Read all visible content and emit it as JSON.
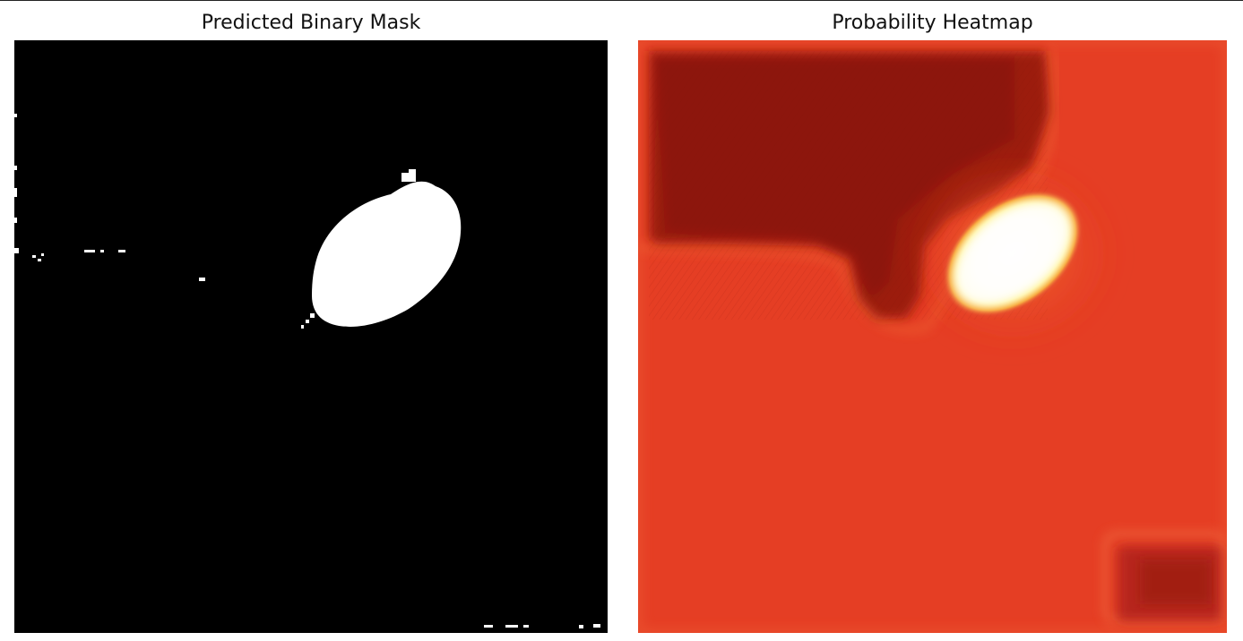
{
  "panels": [
    {
      "title": "Predicted Binary Mask"
    },
    {
      "title": "Probability Heatmap"
    }
  ],
  "colors": {
    "mask_background": "#000000",
    "mask_foreground": "#ffffff",
    "heat_base": "#e23a22",
    "heat_dark": "#8e1a0e",
    "heat_hot": "#fffbe0",
    "heat_halo": "#f6b136"
  }
}
